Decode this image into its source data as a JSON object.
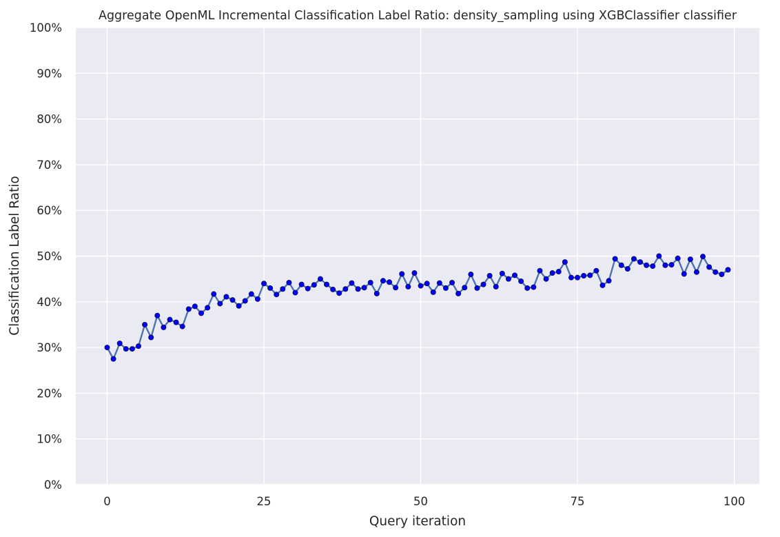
{
  "chart_data": {
    "type": "line",
    "title": "Aggregate OpenML Incremental Classification Label Ratio: density_sampling using XGBClassifier classifier",
    "xlabel": "Query iteration",
    "ylabel": "Classification Label Ratio",
    "xlim": [
      -5,
      104
    ],
    "ylim": [
      0,
      1
    ],
    "xticks": [
      0,
      25,
      50,
      75,
      100
    ],
    "xtick_labels": [
      "0",
      "25",
      "50",
      "75",
      "100"
    ],
    "yticks": [
      0,
      0.1,
      0.2,
      0.3,
      0.4,
      0.5,
      0.6,
      0.7,
      0.8,
      0.9,
      1.0
    ],
    "ytick_labels": [
      "0%",
      "10%",
      "20%",
      "30%",
      "40%",
      "50%",
      "60%",
      "70%",
      "80%",
      "90%",
      "100%"
    ],
    "grid": true,
    "colors": {
      "background": "#eaeaf2",
      "line": "#4c72b0",
      "marker": "#0000ff"
    },
    "series": [
      {
        "x": [
          0,
          1,
          2,
          3,
          4,
          5,
          6,
          7,
          8,
          9,
          10,
          11,
          12,
          13,
          14,
          15,
          16,
          17,
          18,
          19,
          20,
          21,
          22,
          23,
          24,
          25,
          26,
          27,
          28,
          29,
          30,
          31,
          32,
          33,
          34,
          35,
          36,
          37,
          38,
          39,
          40,
          41,
          42,
          43,
          44,
          45,
          46,
          47,
          48,
          49,
          50,
          51,
          52,
          53,
          54,
          55,
          56,
          57,
          58,
          59,
          60,
          61,
          62,
          63,
          64,
          65,
          66,
          67,
          68,
          69,
          70,
          71,
          72,
          73,
          74,
          75,
          76,
          77,
          78,
          79,
          80,
          81,
          82,
          83,
          84,
          85,
          86,
          87,
          88,
          89,
          90,
          91,
          92,
          93,
          94,
          95,
          96,
          97,
          98,
          99
        ],
        "values": [
          0.3,
          0.275,
          0.309,
          0.297,
          0.297,
          0.303,
          0.35,
          0.322,
          0.37,
          0.344,
          0.361,
          0.355,
          0.346,
          0.384,
          0.39,
          0.375,
          0.387,
          0.417,
          0.396,
          0.411,
          0.404,
          0.391,
          0.402,
          0.417,
          0.406,
          0.44,
          0.43,
          0.416,
          0.428,
          0.442,
          0.42,
          0.438,
          0.429,
          0.437,
          0.45,
          0.438,
          0.427,
          0.419,
          0.428,
          0.441,
          0.428,
          0.431,
          0.442,
          0.418,
          0.446,
          0.443,
          0.431,
          0.461,
          0.433,
          0.463,
          0.435,
          0.44,
          0.421,
          0.441,
          0.43,
          0.442,
          0.418,
          0.431,
          0.46,
          0.43,
          0.438,
          0.457,
          0.433,
          0.462,
          0.45,
          0.458,
          0.445,
          0.43,
          0.432,
          0.468,
          0.45,
          0.463,
          0.466,
          0.487,
          0.453,
          0.453,
          0.457,
          0.458,
          0.468,
          0.436,
          0.446,
          0.494,
          0.48,
          0.472,
          0.494,
          0.487,
          0.48,
          0.478,
          0.5,
          0.48,
          0.481,
          0.495,
          0.461,
          0.493,
          0.465,
          0.499,
          0.476,
          0.465,
          0.46,
          0.47
        ]
      }
    ]
  }
}
